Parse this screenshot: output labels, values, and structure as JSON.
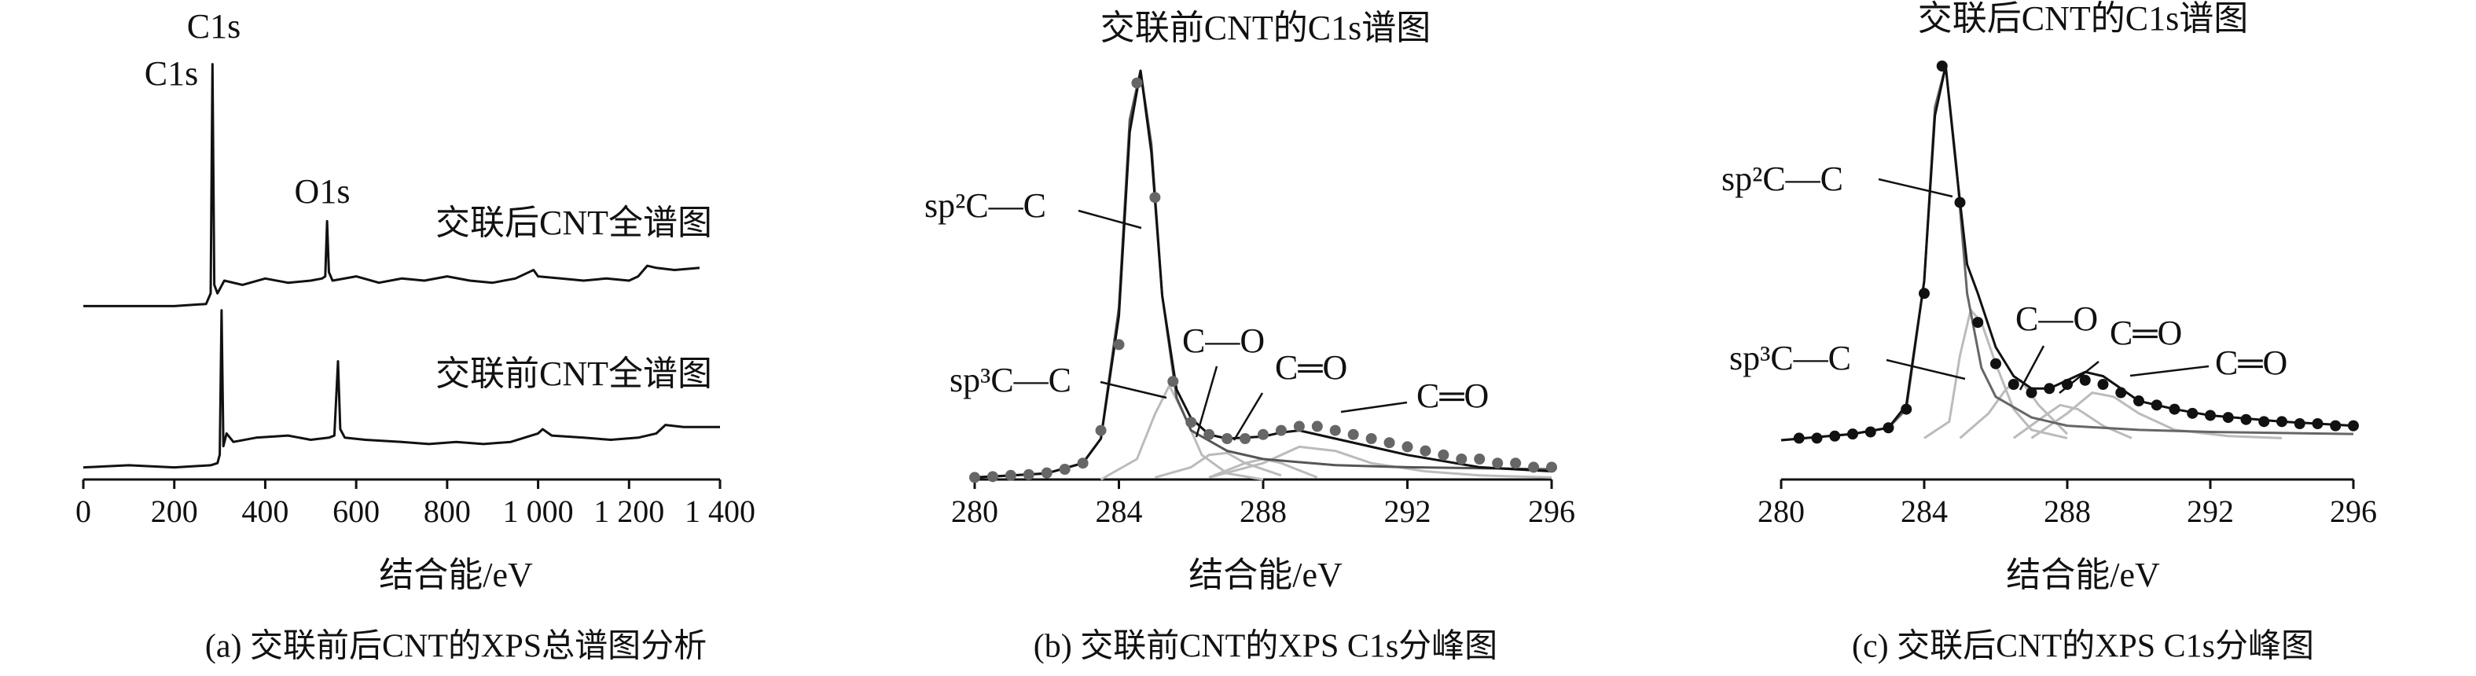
{
  "chart_data": [
    {
      "type": "line",
      "caption": "(a) 交联前后CNT的XPS总谱图分析",
      "x_label": "结合能/eV",
      "xlim": [
        0,
        1400
      ],
      "ylim": [
        0,
        100
      ],
      "xticks": [
        0,
        200,
        400,
        600,
        800,
        {
          "value": 1000,
          "label": "1 000"
        },
        {
          "value": 1200,
          "label": "1 200"
        },
        {
          "value": 1400,
          "label": "1 400"
        }
      ],
      "annotations": [
        "C1s",
        "C1s",
        "O1s",
        "交联后CNT全谱图",
        "交联前CNT全谱图"
      ],
      "series": [
        {
          "mode": "line",
          "color": "#111111",
          "x": [
            0,
            100,
            200,
            270,
            280,
            284,
            288,
            295,
            310,
            350,
            400,
            450,
            500,
            525,
            532,
            536,
            540,
            548,
            600,
            650,
            700,
            750,
            800,
            850,
            900,
            950,
            980,
            990,
            1000,
            1050,
            1100,
            1150,
            1200,
            1220,
            1240,
            1260,
            1300,
            1355
          ],
          "values": [
            39,
            39,
            39,
            39.5,
            42,
            96,
            44,
            42,
            45,
            44,
            45.5,
            44.5,
            45,
            45.5,
            46,
            59,
            47,
            45,
            46,
            44.5,
            45.5,
            45,
            46,
            45,
            44.5,
            45.5,
            47,
            47.5,
            46,
            45.5,
            45,
            45.5,
            45,
            46,
            48.5,
            48,
            47.5,
            48
          ]
        },
        {
          "mode": "line",
          "color": "#111111",
          "x": [
            0,
            100,
            200,
            280,
            295,
            300,
            304,
            308,
            315,
            330,
            380,
            450,
            500,
            540,
            552,
            560,
            565,
            575,
            620,
            700,
            760,
            820,
            880,
            940,
            1000,
            1010,
            1030,
            1100,
            1160,
            1220,
            1260,
            1280,
            1320,
            1400
          ],
          "values": [
            1,
            1.5,
            1,
            1.5,
            2,
            4,
            38,
            6,
            9,
            7,
            8,
            8.5,
            7.5,
            8,
            8.5,
            26,
            10,
            8,
            7.5,
            7,
            6.5,
            7,
            6.5,
            7,
            9,
            10,
            8.5,
            8,
            7.5,
            8,
            9,
            11,
            10.5,
            10.5
          ]
        }
      ]
    },
    {
      "type": "line",
      "title": "交联前CNT的C1s谱图",
      "caption": "(b) 交联前CNT的XPS C1s分峰图",
      "x_label": "结合能/eV",
      "xlim": [
        280,
        296
      ],
      "ylim": [
        0,
        100
      ],
      "xticks": [
        280,
        284,
        288,
        292,
        296
      ],
      "annotations": [
        "sp²C—C",
        "sp³C—C",
        "C—O",
        "C═O",
        "C═O"
      ],
      "series": [
        {
          "mode": "line",
          "color": "#bbbbbb",
          "x": [
            283.5,
            284.5,
            285,
            285.4,
            285.8,
            286.3,
            287,
            288
          ],
          "values": [
            0,
            5,
            16,
            23,
            16,
            6,
            1.5,
            0
          ]
        },
        {
          "mode": "line",
          "color": "#bbbbbb",
          "x": [
            285,
            286,
            286.5,
            287,
            287.5,
            288.5
          ],
          "values": [
            0.5,
            3,
            6,
            6.5,
            4,
            1
          ]
        },
        {
          "mode": "line",
          "color": "#bbbbbb",
          "x": [
            286.5,
            287.5,
            288,
            288.5,
            289.5
          ],
          "values": [
            0.5,
            4,
            5,
            4,
            0.5
          ]
        },
        {
          "mode": "line",
          "color": "#bbbbbb",
          "x": [
            286.5,
            288,
            289,
            290,
            291,
            292.5,
            294,
            296
          ],
          "values": [
            0.5,
            4,
            8,
            7,
            4,
            2,
            1,
            0.5
          ]
        },
        {
          "mode": "line",
          "color": "#555555",
          "x": [
            280,
            282,
            283,
            283.5,
            284,
            284.3,
            284.6,
            284.9,
            285.2,
            285.6,
            286,
            287,
            288,
            290,
            292,
            296
          ],
          "values": [
            0.5,
            1.5,
            4,
            10,
            42,
            88,
            100,
            82,
            45,
            20,
            12,
            7,
            5,
            3.5,
            3,
            2.5
          ]
        },
        {
          "mode": "line",
          "color": "#111111",
          "x": [
            280,
            282,
            283,
            283.5,
            284,
            284.3,
            284.6,
            284.9,
            285.2,
            285.6,
            286,
            286.5,
            287,
            288,
            288.5,
            289,
            290,
            291,
            292,
            294,
            296
          ],
          "values": [
            0.5,
            1.5,
            4,
            10,
            40,
            85,
            100,
            80,
            45,
            22,
            15,
            11,
            10,
            10.5,
            11.5,
            12,
            10,
            8,
            6,
            3,
            2
          ]
        },
        {
          "mode": "markers",
          "color": "#666666",
          "x": [
            280,
            280.5,
            281,
            281.5,
            282,
            282.5,
            283,
            283.5,
            284,
            284.5,
            285,
            285.5,
            286,
            286.5,
            287,
            287.5,
            288,
            288.5,
            289,
            289.5,
            290,
            290.5,
            291,
            291.5,
            292,
            292.5,
            293,
            293.5,
            294,
            294.5,
            295,
            295.5,
            296
          ],
          "values": [
            0.5,
            0.7,
            1,
            1.2,
            1.6,
            2.5,
            4,
            12,
            33,
            97,
            69,
            24,
            14,
            11,
            10,
            10,
            11,
            12,
            13,
            13,
            12,
            11,
            10,
            9,
            8,
            7,
            6,
            5,
            5,
            4,
            4,
            3,
            3
          ]
        }
      ]
    },
    {
      "type": "line",
      "title": "交联后CNT的C1s谱图",
      "caption": "(c) 交联后CNT的XPS C1s分峰图",
      "x_label": "结合能/eV",
      "xlim": [
        280,
        296
      ],
      "ylim": [
        0,
        100
      ],
      "xticks": [
        280,
        284,
        288,
        292,
        296
      ],
      "annotations": [
        "sp²C—C",
        "sp³C—C",
        "C—O",
        "C═O",
        "C═O"
      ],
      "series": [
        {
          "mode": "line",
          "color": "#bbbbbb",
          "x": [
            284,
            284.7,
            285,
            285.3,
            285.6,
            286,
            286.5,
            287,
            288
          ],
          "values": [
            10,
            14,
            30,
            41,
            38,
            28,
            17,
            12,
            10
          ]
        },
        {
          "mode": "line",
          "color": "#bbbbbb",
          "x": [
            285,
            285.8,
            286.3,
            286.7,
            287.2,
            288
          ],
          "values": [
            10,
            16,
            22,
            24,
            18,
            11
          ]
        },
        {
          "mode": "line",
          "color": "#bbbbbb",
          "x": [
            286.5,
            287.3,
            287.8,
            288.3,
            289,
            289.8
          ],
          "values": [
            10,
            15,
            18,
            17,
            13,
            10
          ]
        },
        {
          "mode": "line",
          "color": "#bbbbbb",
          "x": [
            287,
            288,
            288.7,
            289.3,
            290,
            291,
            292.5,
            294
          ],
          "values": [
            10,
            16,
            21,
            20,
            16,
            12,
            10.5,
            10
          ]
        },
        {
          "mode": "line",
          "color": "#666666",
          "x": [
            280,
            282,
            283,
            283.5,
            284,
            284.3,
            284.6,
            284.9,
            285.2,
            285.6,
            286,
            287,
            288,
            290,
            292,
            296
          ],
          "values": [
            9.5,
            11,
            12.5,
            17,
            48,
            90,
            100,
            76,
            45,
            27,
            20,
            15,
            13,
            12,
            11.5,
            11
          ]
        },
        {
          "mode": "line",
          "color": "#111111",
          "x": [
            280,
            282,
            283,
            283.5,
            284,
            284.3,
            284.6,
            284.9,
            285.2,
            285.5,
            286,
            286.5,
            287,
            287.5,
            288,
            288.5,
            289,
            289.5,
            290,
            291,
            292,
            294,
            296
          ],
          "values": [
            9.5,
            11,
            12.5,
            18,
            48,
            88,
            100,
            75,
            52,
            45,
            32,
            25,
            22,
            22,
            24,
            26,
            25,
            22,
            19,
            17,
            15.5,
            14,
            13
          ]
        },
        {
          "mode": "markers",
          "color": "#111111",
          "x": [
            280.5,
            281,
            281.5,
            282,
            282.5,
            283,
            283.5,
            284,
            284.5,
            285,
            285.5,
            286,
            286.5,
            287,
            287.5,
            288,
            288.5,
            289,
            289.5,
            290,
            290.5,
            291,
            291.5,
            292,
            292.5,
            293,
            293.5,
            294,
            294.5,
            295,
            295.5,
            296
          ],
          "values": [
            10,
            10,
            10.5,
            11,
            11.5,
            12.5,
            17,
            45,
            100,
            67,
            38,
            28,
            23,
            21,
            22,
            23,
            24,
            23,
            21,
            19,
            18,
            17,
            16,
            15.5,
            15,
            14.5,
            14,
            14,
            13.5,
            13.5,
            13,
            13
          ]
        }
      ]
    }
  ]
}
